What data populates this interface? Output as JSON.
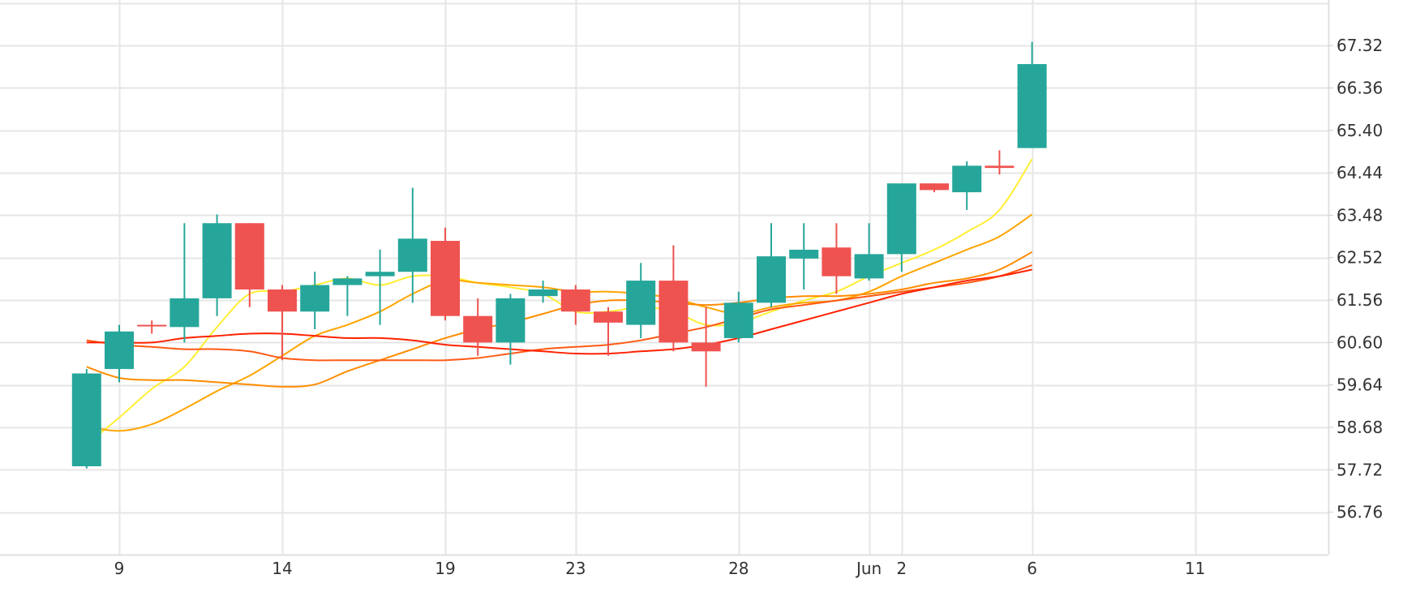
{
  "chart_data": {
    "type": "candlestick",
    "title": "",
    "xlabel": "",
    "ylabel": "",
    "ylim": [
      55.8,
      68.35
    ],
    "y_ticks": [
      "56.76",
      "57.72",
      "58.68",
      "59.64",
      "60.60",
      "61.56",
      "62.52",
      "63.48",
      "64.44",
      "65.40",
      "66.36",
      "67.32"
    ],
    "x_ticks": [
      {
        "label": "9",
        "date": "2025-05-09"
      },
      {
        "label": "14",
        "date": "2025-05-14"
      },
      {
        "label": "19",
        "date": "2025-05-19"
      },
      {
        "label": "23",
        "date": "2025-05-23"
      },
      {
        "label": "28",
        "date": "2025-05-28"
      },
      {
        "label": "Jun",
        "date": "2025-06-01"
      },
      {
        "label": "2",
        "date": "2025-06-02"
      },
      {
        "label": "6",
        "date": "2025-06-06"
      },
      {
        "label": "11",
        "date": "2025-06-11"
      }
    ],
    "grid": true,
    "colors": {
      "up": "#26a69a",
      "down": "#ef5350",
      "grid": "#e6e6e6"
    },
    "candles": [
      {
        "date": "2025-05-08",
        "open": 57.8,
        "high": 60.0,
        "low": 57.75,
        "close": 59.9
      },
      {
        "date": "2025-05-09",
        "open": 60.0,
        "high": 61.0,
        "low": 59.7,
        "close": 60.85
      },
      {
        "date": "2025-05-10",
        "open": 61.0,
        "high": 61.1,
        "low": 60.8,
        "close": 60.98
      },
      {
        "date": "2025-05-11",
        "open": 60.95,
        "high": 63.3,
        "low": 60.6,
        "close": 61.6
      },
      {
        "date": "2025-05-12",
        "open": 61.6,
        "high": 63.5,
        "low": 61.2,
        "close": 63.3
      },
      {
        "date": "2025-05-13",
        "open": 63.3,
        "high": 63.3,
        "low": 61.4,
        "close": 61.8
      },
      {
        "date": "2025-05-14",
        "open": 61.8,
        "high": 61.9,
        "low": 60.2,
        "close": 61.3
      },
      {
        "date": "2025-05-15",
        "open": 61.3,
        "high": 62.2,
        "low": 60.9,
        "close": 61.9
      },
      {
        "date": "2025-05-16",
        "open": 61.9,
        "high": 62.1,
        "low": 61.2,
        "close": 62.05
      },
      {
        "date": "2025-05-17",
        "open": 62.1,
        "high": 62.7,
        "low": 61.0,
        "close": 62.2
      },
      {
        "date": "2025-05-18",
        "open": 62.2,
        "high": 64.1,
        "low": 61.5,
        "close": 62.95
      },
      {
        "date": "2025-05-19",
        "open": 62.9,
        "high": 63.2,
        "low": 61.1,
        "close": 61.2
      },
      {
        "date": "2025-05-20",
        "open": 61.2,
        "high": 61.6,
        "low": 60.3,
        "close": 60.6
      },
      {
        "date": "2025-05-21",
        "open": 60.6,
        "high": 61.7,
        "low": 60.1,
        "close": 61.6
      },
      {
        "date": "2025-05-22",
        "open": 61.65,
        "high": 62.0,
        "low": 61.5,
        "close": 61.8
      },
      {
        "date": "2025-05-23",
        "open": 61.8,
        "high": 61.9,
        "low": 61.0,
        "close": 61.3
      },
      {
        "date": "2025-05-24",
        "open": 61.3,
        "high": 61.4,
        "low": 60.3,
        "close": 61.05
      },
      {
        "date": "2025-05-25",
        "open": 61.0,
        "high": 62.4,
        "low": 60.7,
        "close": 62.0
      },
      {
        "date": "2025-05-26",
        "open": 62.0,
        "high": 62.8,
        "low": 60.4,
        "close": 60.6
      },
      {
        "date": "2025-05-27",
        "open": 60.6,
        "high": 61.4,
        "low": 59.6,
        "close": 60.4
      },
      {
        "date": "2025-05-28",
        "open": 60.7,
        "high": 61.75,
        "low": 60.6,
        "close": 61.5
      },
      {
        "date": "2025-05-29",
        "open": 61.5,
        "high": 63.3,
        "low": 61.4,
        "close": 62.55
      },
      {
        "date": "2025-05-30",
        "open": 62.5,
        "high": 63.3,
        "low": 61.8,
        "close": 62.7
      },
      {
        "date": "2025-05-31",
        "open": 62.75,
        "high": 63.3,
        "low": 61.7,
        "close": 62.1
      },
      {
        "date": "2025-06-01",
        "open": 62.05,
        "high": 63.3,
        "low": 62.0,
        "close": 62.6
      },
      {
        "date": "2025-06-02",
        "open": 62.6,
        "high": 64.1,
        "low": 62.2,
        "close": 64.2
      },
      {
        "date": "2025-06-03",
        "open": 64.2,
        "high": 64.2,
        "low": 64.0,
        "close": 64.05
      },
      {
        "date": "2025-06-04",
        "open": 64.0,
        "high": 64.7,
        "low": 63.6,
        "close": 64.6
      },
      {
        "date": "2025-06-05",
        "open": 64.6,
        "high": 64.95,
        "low": 64.4,
        "close": 64.55
      },
      {
        "date": "2025-06-06",
        "open": 65.0,
        "high": 67.4,
        "low": 65.0,
        "close": 66.9
      }
    ],
    "ma_series": [
      {
        "color": "#ffee33",
        "values": [
          58.3,
          58.9,
          59.55,
          60.05,
          60.95,
          61.7,
          61.75,
          61.9,
          62.05,
          61.9,
          62.1,
          62.1,
          61.95,
          61.85,
          61.7,
          61.3,
          61.3,
          61.4,
          61.3,
          61.0,
          61.05,
          61.3,
          61.55,
          61.75,
          62.1,
          62.4,
          62.7,
          63.1,
          63.6,
          64.75
        ]
      },
      {
        "color": "#ffa500",
        "values": [
          58.7,
          58.6,
          58.75,
          59.1,
          59.5,
          59.85,
          60.3,
          60.75,
          61.0,
          61.3,
          61.7,
          62.0,
          61.95,
          61.9,
          61.85,
          61.75,
          61.75,
          61.7,
          61.6,
          61.4,
          61.25,
          61.4,
          61.5,
          61.55,
          61.75,
          62.1,
          62.4,
          62.7,
          63.0,
          63.5
        ]
      },
      {
        "color": "#ff8c00",
        "values": [
          60.05,
          59.8,
          59.75,
          59.75,
          59.7,
          59.65,
          59.6,
          59.65,
          59.95,
          60.2,
          60.45,
          60.7,
          60.9,
          61.05,
          61.25,
          61.45,
          61.55,
          61.55,
          61.5,
          61.45,
          61.5,
          61.6,
          61.65,
          61.65,
          61.7,
          61.8,
          61.95,
          62.05,
          62.25,
          62.65
        ]
      },
      {
        "color": "#ff5a14",
        "values": [
          60.65,
          60.55,
          60.5,
          60.45,
          60.45,
          60.4,
          60.25,
          60.2,
          60.2,
          60.2,
          60.2,
          60.2,
          60.25,
          60.35,
          60.45,
          60.5,
          60.55,
          60.65,
          60.8,
          60.95,
          61.15,
          61.35,
          61.45,
          61.55,
          61.65,
          61.75,
          61.85,
          61.95,
          62.1,
          62.35
        ]
      },
      {
        "color": "#ff2200",
        "values": [
          60.6,
          60.6,
          60.6,
          60.7,
          60.75,
          60.8,
          60.8,
          60.75,
          60.7,
          60.7,
          60.65,
          60.55,
          60.5,
          60.45,
          60.4,
          60.35,
          60.35,
          60.4,
          60.45,
          60.55,
          60.7,
          60.9,
          61.1,
          61.3,
          61.5,
          61.7,
          61.85,
          62.0,
          62.1,
          62.25
        ]
      }
    ]
  }
}
